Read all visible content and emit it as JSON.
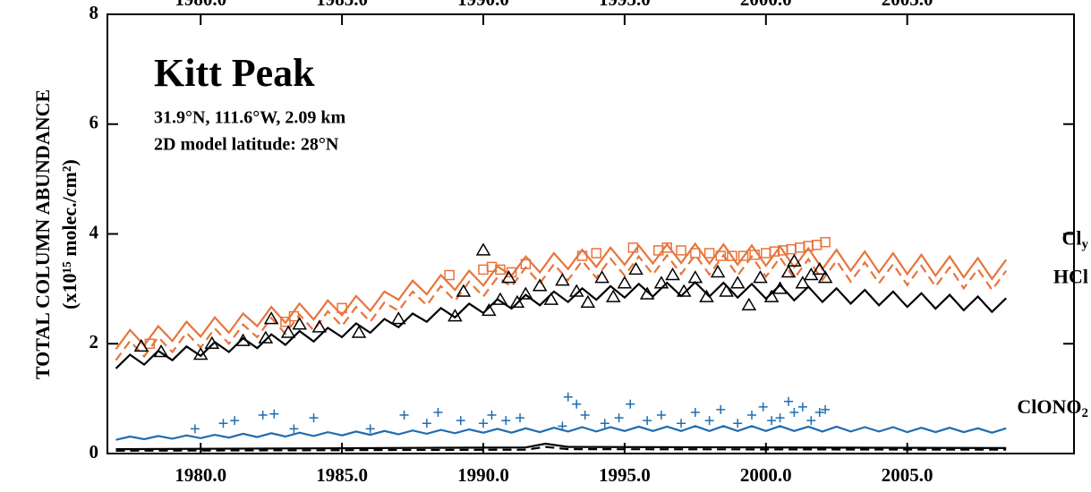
{
  "chart_data": {
    "type": "line",
    "title": "Kitt Peak",
    "subtitle_lines": [
      "31.9°N, 111.6°W, 2.09 km",
      "2D model latitude: 28°N"
    ],
    "ylabel_lines": [
      "TOTAL COLUMN ABUNDANCE",
      "(x10¹⁵ molec./cm²)"
    ],
    "xlim": [
      1976.7,
      2010.9
    ],
    "ylim": [
      0,
      8
    ],
    "xticks": [
      {
        "value": 1980,
        "label": "1980.0"
      },
      {
        "value": 1985,
        "label": "1985.0"
      },
      {
        "value": 1990,
        "label": "1990.0"
      },
      {
        "value": 1995,
        "label": "1995.0"
      },
      {
        "value": 2000,
        "label": "2000.0"
      },
      {
        "value": 2005,
        "label": "2005.0"
      }
    ],
    "yticks": [
      0,
      2,
      4,
      6,
      8
    ],
    "x": [
      1977,
      1977.5,
      1978,
      1978.5,
      1979,
      1979.5,
      1980,
      1980.5,
      1981,
      1981.5,
      1982,
      1982.5,
      1983,
      1983.5,
      1984,
      1984.5,
      1985,
      1985.5,
      1986,
      1986.5,
      1987,
      1987.5,
      1988,
      1988.5,
      1989,
      1989.5,
      1990,
      1990.5,
      1991,
      1991.5,
      1992,
      1992.5,
      1993,
      1993.5,
      1994,
      1994.5,
      1995,
      1995.5,
      1996,
      1996.5,
      1997,
      1997.5,
      1998,
      1998.5,
      1999,
      1999.5,
      2000,
      2000.5,
      2001,
      2001.5,
      2002,
      2002.5,
      2003,
      2003.5,
      2004,
      2004.5,
      2005,
      2005.5,
      2006,
      2006.5,
      2007,
      2007.5,
      2008,
      2008.5
    ],
    "series": [
      {
        "name": "Cl",
        "name_sub": "y",
        "type": "line",
        "color": "#e8743b",
        "values": [
          1.9,
          2.25,
          1.97,
          2.32,
          2.05,
          2.4,
          2.13,
          2.48,
          2.2,
          2.55,
          2.32,
          2.67,
          2.38,
          2.73,
          2.44,
          2.79,
          2.52,
          2.87,
          2.6,
          2.95,
          2.8,
          3.15,
          2.9,
          3.25,
          2.98,
          3.33,
          3.06,
          3.41,
          3.24,
          3.59,
          3.3,
          3.65,
          3.36,
          3.71,
          3.4,
          3.75,
          3.44,
          3.79,
          3.46,
          3.81,
          3.47,
          3.82,
          3.46,
          3.81,
          3.44,
          3.79,
          3.42,
          3.77,
          3.39,
          3.74,
          3.36,
          3.71,
          3.33,
          3.68,
          3.3,
          3.65,
          3.27,
          3.62,
          3.24,
          3.59,
          3.21,
          3.56,
          3.18,
          3.53
        ]
      },
      {
        "type": "line",
        "color": "#e8743b",
        "dashed": true,
        "values": [
          1.7,
          2.05,
          1.77,
          2.12,
          1.85,
          2.2,
          1.93,
          2.28,
          2.0,
          2.35,
          2.12,
          2.47,
          2.18,
          2.53,
          2.24,
          2.59,
          2.32,
          2.67,
          2.4,
          2.75,
          2.6,
          2.95,
          2.7,
          3.05,
          2.78,
          3.13,
          2.86,
          3.21,
          3.04,
          3.39,
          3.1,
          3.45,
          3.16,
          3.51,
          3.2,
          3.55,
          3.24,
          3.59,
          3.26,
          3.61,
          3.27,
          3.62,
          3.26,
          3.61,
          3.24,
          3.59,
          3.22,
          3.57,
          3.19,
          3.54,
          3.16,
          3.51,
          3.13,
          3.48,
          3.1,
          3.45,
          3.07,
          3.42,
          3.04,
          3.39,
          3.01,
          3.36,
          2.98,
          3.33
        ]
      },
      {
        "name": "HCl",
        "type": "line",
        "color": "#000000",
        "values": [
          1.55,
          1.8,
          1.62,
          1.87,
          1.7,
          1.95,
          1.78,
          2.03,
          1.85,
          2.1,
          1.92,
          2.17,
          1.98,
          2.23,
          2.04,
          2.29,
          2.12,
          2.37,
          2.2,
          2.45,
          2.3,
          2.55,
          2.4,
          2.65,
          2.48,
          2.73,
          2.56,
          2.81,
          2.64,
          2.89,
          2.7,
          2.95,
          2.76,
          3.01,
          2.8,
          3.05,
          2.84,
          3.09,
          2.86,
          3.11,
          2.87,
          3.12,
          2.86,
          3.11,
          2.84,
          3.09,
          2.82,
          3.07,
          2.79,
          3.04,
          2.76,
          3.01,
          2.73,
          2.98,
          2.7,
          2.95,
          2.67,
          2.92,
          2.64,
          2.89,
          2.61,
          2.86,
          2.58,
          2.83
        ]
      },
      {
        "name": "ClONO",
        "name_sub": "2",
        "type": "line",
        "color": "#1f6db0",
        "values": [
          0.25,
          0.31,
          0.26,
          0.32,
          0.27,
          0.33,
          0.28,
          0.34,
          0.29,
          0.36,
          0.3,
          0.37,
          0.31,
          0.38,
          0.32,
          0.39,
          0.33,
          0.4,
          0.34,
          0.41,
          0.35,
          0.42,
          0.36,
          0.43,
          0.37,
          0.44,
          0.38,
          0.45,
          0.38,
          0.46,
          0.39,
          0.47,
          0.4,
          0.48,
          0.4,
          0.48,
          0.41,
          0.49,
          0.41,
          0.49,
          0.41,
          0.5,
          0.41,
          0.5,
          0.41,
          0.5,
          0.41,
          0.5,
          0.41,
          0.49,
          0.4,
          0.49,
          0.4,
          0.48,
          0.4,
          0.48,
          0.39,
          0.47,
          0.39,
          0.47,
          0.39,
          0.46,
          0.38,
          0.46
        ]
      },
      {
        "type": "line",
        "color": "#000000",
        "x": [
          1977,
          1991.5,
          1992.2,
          1993,
          2008.5
        ],
        "values": [
          0.08,
          0.11,
          0.18,
          0.12,
          0.1
        ]
      },
      {
        "type": "line",
        "color": "#000000",
        "dashed": true,
        "x": [
          1977,
          1991.5,
          1992.2,
          1993,
          2008.5
        ],
        "values": [
          0.05,
          0.07,
          0.12,
          0.08,
          0.07
        ]
      },
      {
        "type": "scatter",
        "marker": "square",
        "color": "#e8743b",
        "x": [
          1978.2,
          1983.0,
          1983.3,
          1985.0,
          1988.8,
          1990.0,
          1990.3,
          1990.6,
          1991.0,
          1991.5,
          1993.5,
          1994.0,
          1995.3,
          1996.2,
          1996.5,
          1997.0,
          1997.5,
          1998.0,
          1998.4,
          1998.8,
          1999.2,
          1999.6,
          2000.0,
          2000.3,
          2000.6,
          2000.9,
          2001.2,
          2001.5,
          2001.8,
          2002.1
        ],
        "values": [
          2.0,
          2.4,
          2.5,
          2.65,
          3.25,
          3.35,
          3.4,
          3.35,
          3.3,
          3.45,
          3.6,
          3.65,
          3.75,
          3.7,
          3.75,
          3.7,
          3.65,
          3.65,
          3.6,
          3.6,
          3.6,
          3.62,
          3.65,
          3.68,
          3.7,
          3.72,
          3.75,
          3.78,
          3.8,
          3.85
        ]
      },
      {
        "type": "scatter",
        "marker": "triangle",
        "color": "#000000",
        "x": [
          1977.9,
          1978.6,
          1980.0,
          1980.4,
          1981.5,
          1982.3,
          1982.5,
          1983.1,
          1983.5,
          1984.2,
          1985.6,
          1987.0,
          1989.0,
          1989.3,
          1990.0,
          1990.2,
          1990.6,
          1990.9,
          1991.2,
          1991.5,
          1992.0,
          1992.4,
          1992.8,
          1993.3,
          1993.7,
          1994.2,
          1994.6,
          1995.0,
          1995.4,
          1995.8,
          1996.3,
          1996.7,
          1997.1,
          1997.5,
          1997.9,
          1998.3,
          1998.6,
          1999.0,
          1999.4,
          1999.8,
          2000.2,
          2000.5,
          2000.8,
          2001.0,
          2001.3,
          2001.6,
          2001.9,
          2002.1
        ],
        "values": [
          1.95,
          1.85,
          1.8,
          2.0,
          2.05,
          2.1,
          2.45,
          2.2,
          2.35,
          2.3,
          2.2,
          2.45,
          2.5,
          2.95,
          3.7,
          2.6,
          2.8,
          3.2,
          2.75,
          2.9,
          3.05,
          2.8,
          3.15,
          2.95,
          2.75,
          3.2,
          2.85,
          3.1,
          3.35,
          2.9,
          3.1,
          3.25,
          2.95,
          3.2,
          2.85,
          3.3,
          2.95,
          3.1,
          2.7,
          3.2,
          2.85,
          3.0,
          3.3,
          3.5,
          3.1,
          3.25,
          3.35,
          3.2
        ]
      },
      {
        "type": "scatter",
        "marker": "plus",
        "color": "#1f6db0",
        "x": [
          1979.8,
          1980.8,
          1981.2,
          1982.2,
          1982.6,
          1983.3,
          1984.0,
          1986.0,
          1987.2,
          1988.0,
          1988.4,
          1989.2,
          1990.0,
          1990.3,
          1990.8,
          1991.3,
          1992.8,
          1993.0,
          1993.3,
          1993.6,
          1994.3,
          1994.8,
          1995.2,
          1995.8,
          1996.3,
          1997.0,
          1997.5,
          1998.0,
          1998.4,
          1999.0,
          1999.5,
          1999.9,
          2000.2,
          2000.5,
          2000.8,
          2001.0,
          2001.3,
          2001.6,
          2001.9,
          2002.1
        ],
        "values": [
          0.45,
          0.55,
          0.6,
          0.7,
          0.72,
          0.45,
          0.65,
          0.45,
          0.7,
          0.55,
          0.75,
          0.6,
          0.55,
          0.7,
          0.6,
          0.65,
          0.5,
          1.03,
          0.9,
          0.7,
          0.55,
          0.65,
          0.9,
          0.6,
          0.7,
          0.55,
          0.75,
          0.6,
          0.8,
          0.55,
          0.7,
          0.85,
          0.6,
          0.65,
          0.95,
          0.75,
          0.85,
          0.6,
          0.75,
          0.8
        ]
      }
    ]
  }
}
